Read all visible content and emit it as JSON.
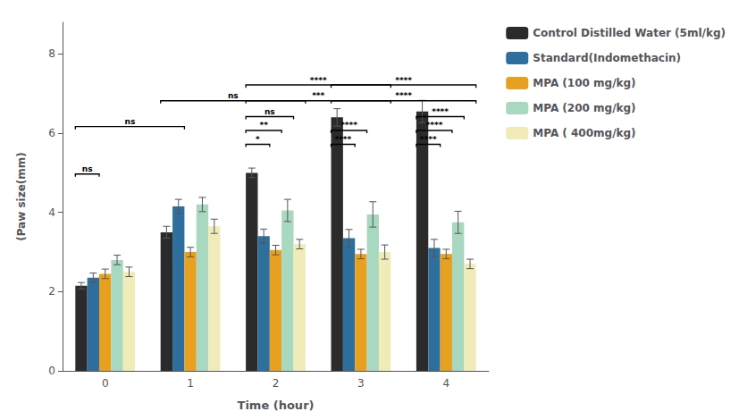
{
  "chart_data": {
    "type": "bar",
    "xlabel": "Time (hour)",
    "ylabel": "(Paw size(mm)",
    "categories": [
      "0",
      "1",
      "2",
      "3",
      "4"
    ],
    "series": [
      {
        "name": "Control Distilled Water (5ml/kg)",
        "color": "#2b2b2b",
        "values": [
          2.15,
          3.5,
          5.0,
          6.4,
          6.55
        ],
        "errors": [
          0.08,
          0.15,
          0.12,
          0.22,
          0.28
        ]
      },
      {
        "name": "Standard(Indomethacin)",
        "color": "#2e6f9e",
        "values": [
          2.35,
          4.15,
          3.4,
          3.35,
          3.1
        ],
        "errors": [
          0.12,
          0.18,
          0.18,
          0.22,
          0.22
        ]
      },
      {
        "name": "MPA (100 mg/kg)",
        "color": "#e8a020",
        "values": [
          2.45,
          3.0,
          3.05,
          2.95,
          2.95
        ],
        "errors": [
          0.12,
          0.12,
          0.12,
          0.12,
          0.12
        ]
      },
      {
        "name": "MPA (200 mg/kg)",
        "color": "#a8d8c0",
        "values": [
          2.8,
          4.2,
          4.05,
          3.95,
          3.75
        ],
        "errors": [
          0.12,
          0.18,
          0.28,
          0.32,
          0.28
        ]
      },
      {
        "name": "MPA ( 400mg/kg)",
        "color": "#f0ebb8",
        "values": [
          2.5,
          3.65,
          3.2,
          3.0,
          2.7
        ],
        "errors": [
          0.12,
          0.18,
          0.12,
          0.18,
          0.12
        ]
      }
    ],
    "annotations": [
      {
        "text": "ns",
        "y": 4.9,
        "from": {
          "category": "0",
          "series": "Control Distilled Water (5ml/kg)"
        },
        "to": {
          "category": "0",
          "series": "Standard(Indomethacin)"
        }
      },
      {
        "text": "ns",
        "y": 6.1,
        "from": {
          "category": "0",
          "series": "Control Distilled Water (5ml/kg)"
        },
        "to": {
          "category": "1",
          "series": "Standard(Indomethacin)"
        }
      },
      {
        "text": "*",
        "y": 5.65,
        "from": {
          "category": "2",
          "series": "Control Distilled Water (5ml/kg)"
        },
        "to": {
          "category": "2",
          "series": "Standard(Indomethacin)"
        }
      },
      {
        "text": "**",
        "y": 6.0,
        "from": {
          "category": "2",
          "series": "Control Distilled Water (5ml/kg)"
        },
        "to": {
          "category": "2",
          "series": "MPA (100 mg/kg)"
        }
      },
      {
        "text": "ns",
        "y": 6.35,
        "from": {
          "category": "2",
          "series": "Control Distilled Water (5ml/kg)"
        },
        "to": {
          "category": "2",
          "series": "MPA (200 mg/kg)"
        }
      },
      {
        "text": "ns",
        "y": 6.75,
        "from": {
          "category": "1",
          "series": "Control Distilled Water (5ml/kg)"
        },
        "to": {
          "category": "2",
          "series": "MPA ( 400mg/kg)"
        }
      },
      {
        "text": "****",
        "y": 5.65,
        "from": {
          "category": "3",
          "series": "Control Distilled Water (5ml/kg)"
        },
        "to": {
          "category": "3",
          "series": "Standard(Indomethacin)"
        }
      },
      {
        "text": "****",
        "y": 6.0,
        "from": {
          "category": "3",
          "series": "Control Distilled Water (5ml/kg)"
        },
        "to": {
          "category": "3",
          "series": "MPA (100 mg/kg)"
        }
      },
      {
        "text": "***",
        "y": 6.75,
        "from": {
          "category": "2",
          "series": "Control Distilled Water (5ml/kg)"
        },
        "to": {
          "category": "3",
          "series": "MPA ( 400mg/kg)"
        }
      },
      {
        "text": "****",
        "y": 7.15,
        "from": {
          "category": "2",
          "series": "Control Distilled Water (5ml/kg)"
        },
        "to": {
          "category": "3",
          "series": "MPA ( 400mg/kg)"
        }
      },
      {
        "text": "****",
        "y": 5.65,
        "from": {
          "category": "4",
          "series": "Control Distilled Water (5ml/kg)"
        },
        "to": {
          "category": "4",
          "series": "Standard(Indomethacin)"
        }
      },
      {
        "text": "****",
        "y": 6.0,
        "from": {
          "category": "4",
          "series": "Control Distilled Water (5ml/kg)"
        },
        "to": {
          "category": "4",
          "series": "MPA (100 mg/kg)"
        }
      },
      {
        "text": "****",
        "y": 6.35,
        "from": {
          "category": "4",
          "series": "Control Distilled Water (5ml/kg)"
        },
        "to": {
          "category": "4",
          "series": "MPA (200 mg/kg)"
        }
      },
      {
        "text": "****",
        "y": 6.75,
        "from": {
          "category": "3",
          "series": "Control Distilled Water (5ml/kg)"
        },
        "to": {
          "category": "4",
          "series": "MPA ( 400mg/kg)"
        }
      },
      {
        "text": "****",
        "y": 7.15,
        "from": {
          "category": "3",
          "series": "Control Distilled Water (5ml/kg)"
        },
        "to": {
          "category": "4",
          "series": "MPA ( 400mg/kg)"
        }
      }
    ],
    "ylim": [
      0,
      8.8
    ],
    "yticks": [
      0,
      2,
      4,
      6,
      8
    ],
    "grid": false,
    "legend": "right"
  }
}
